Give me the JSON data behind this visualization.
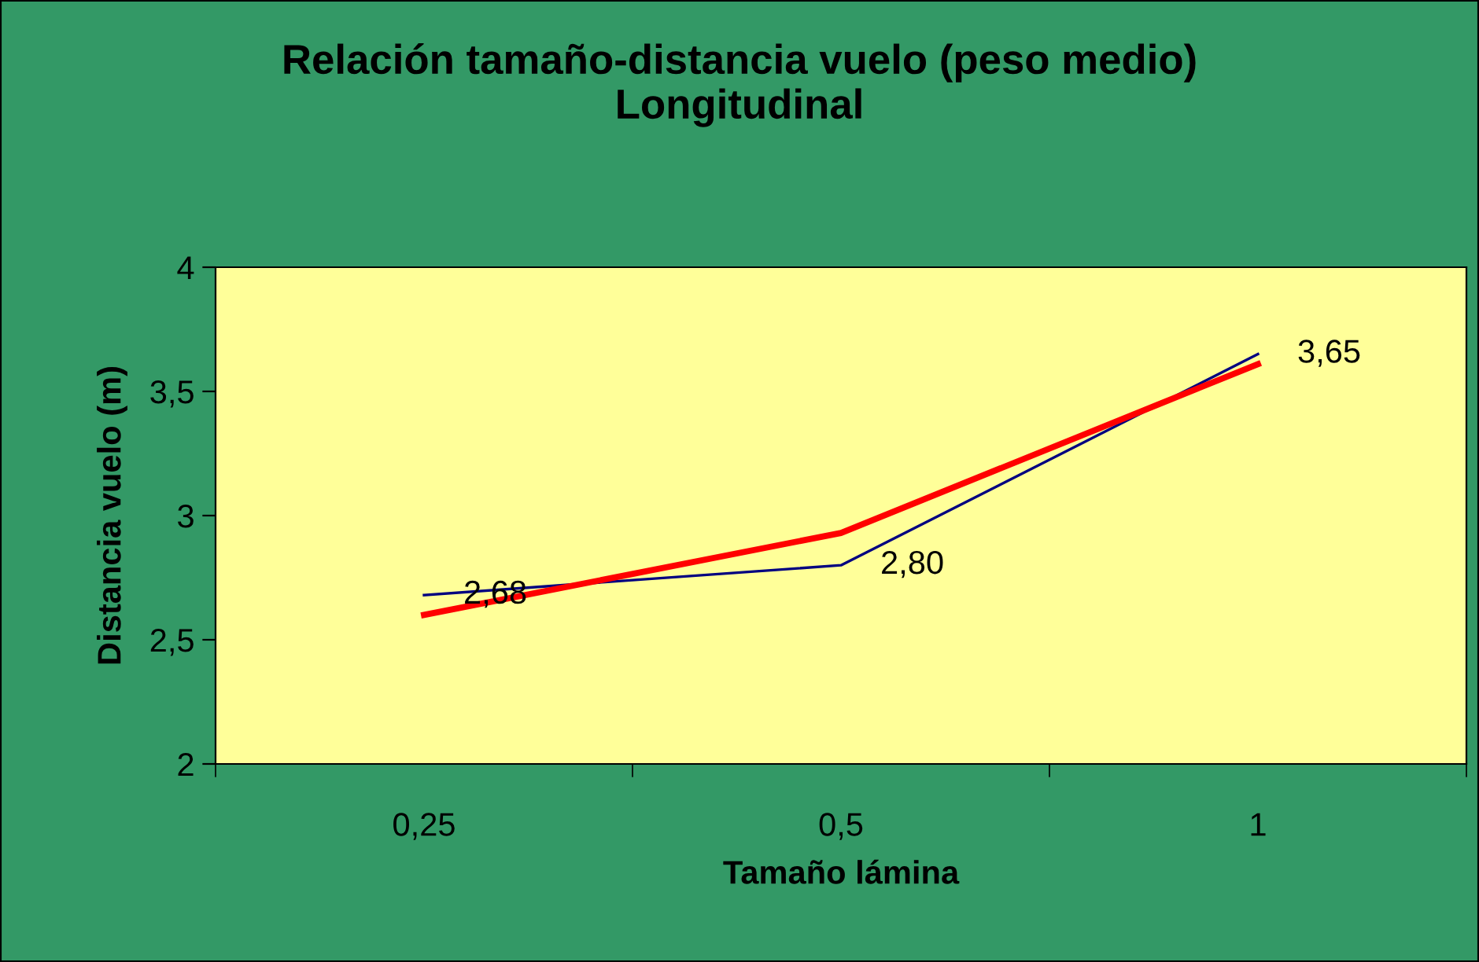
{
  "chart_data": {
    "type": "line",
    "title": "Relación tamaño-distancia vuelo (peso medio)\nLongitudinal",
    "xlabel": "Tamaño lámina",
    "ylabel": "Distancia vuelo (m)",
    "categories": [
      "0,25",
      "0,5",
      "1"
    ],
    "series": [
      {
        "color": "#000080",
        "values": [
          2.68,
          2.8,
          3.65
        ],
        "value_labels": [
          "2,68",
          "2,80",
          "3,65"
        ]
      },
      {
        "color": "#ff0000",
        "values": [
          2.6,
          2.93,
          3.61
        ]
      }
    ],
    "ylim": [
      2,
      4
    ],
    "yticks": [
      2,
      {
        "value": 2.5,
        "label": "2,5"
      },
      3,
      {
        "value": 3.5,
        "label": "3,5"
      },
      4
    ],
    "grid": false,
    "legend": false,
    "marker": "none",
    "line_style": "solid"
  }
}
